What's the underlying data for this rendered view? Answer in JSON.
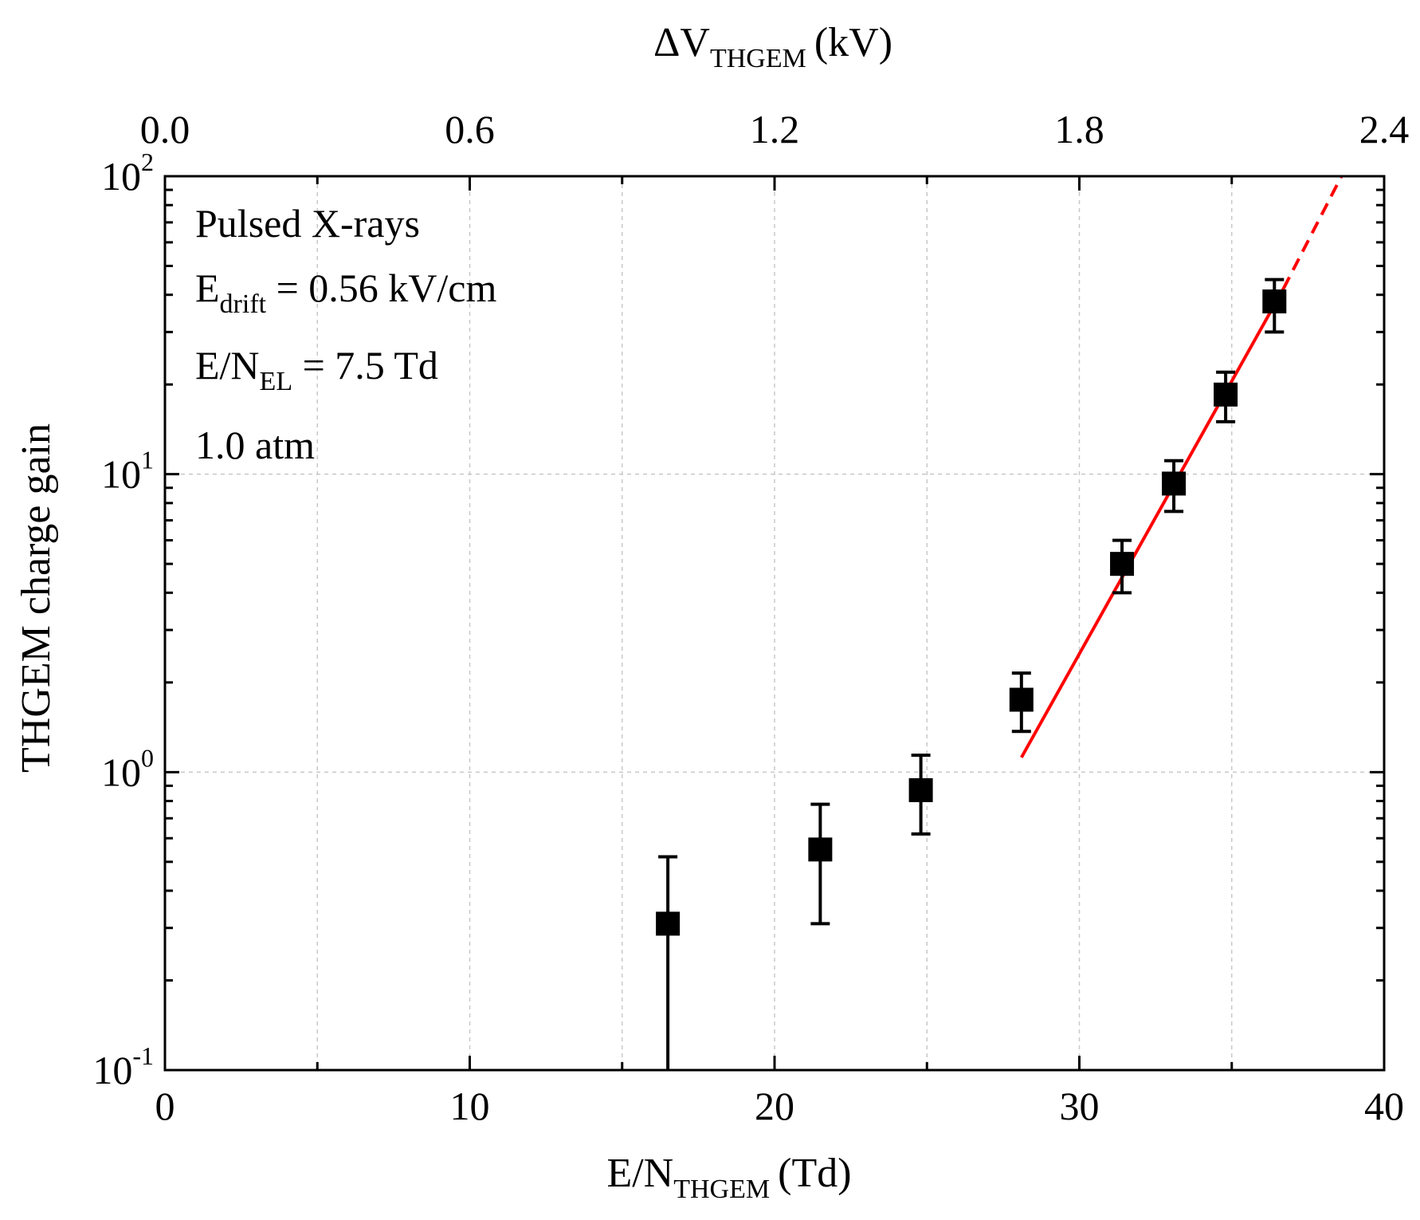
{
  "chart_data": {
    "type": "scatter",
    "xlabel": "E/N",
    "xlabel_sub": "THGEM",
    "xlabel_unit": "(Td)",
    "x2label": "ΔV",
    "x2label_sub": "THGEM",
    "x2label_unit": "(kV)",
    "ylabel": "THGEM charge gain",
    "xlim": [
      0,
      40
    ],
    "x2lim": [
      0.0,
      2.4
    ],
    "ylim": [
      0.1,
      100
    ],
    "yscale": "log",
    "grid": true,
    "x_ticks": [
      "0",
      "10",
      "20",
      "30",
      "40"
    ],
    "x_tick_values": [
      0,
      10,
      20,
      30,
      40
    ],
    "x2_ticks": [
      "0.0",
      "0.6",
      "1.2",
      "1.8",
      "2.4"
    ],
    "x2_tick_values": [
      0.0,
      0.6,
      1.2,
      1.8,
      2.4
    ],
    "y_ticks": [
      {
        "base": "10",
        "exp": "-1",
        "value": 0.1
      },
      {
        "base": "10",
        "exp": "0",
        "value": 1
      },
      {
        "base": "10",
        "exp": "1",
        "value": 10
      },
      {
        "base": "10",
        "exp": "2",
        "value": 100
      }
    ],
    "series": [
      {
        "name": "THGEM charge gain",
        "marker": "square",
        "color": "#000000",
        "x": [
          16.5,
          21.5,
          24.8,
          28.1,
          31.4,
          33.1,
          34.8,
          36.4
        ],
        "y": [
          0.31,
          0.55,
          0.87,
          1.75,
          5.0,
          9.3,
          18.5,
          38.0
        ],
        "err_low": [
          0.31,
          0.24,
          0.25,
          0.38,
          1.0,
          1.8,
          3.5,
          8.0
        ],
        "err_high": [
          0.21,
          0.23,
          0.27,
          0.4,
          1.0,
          1.8,
          3.5,
          7.0
        ]
      }
    ],
    "fit": {
      "name": "exponential fit",
      "color": "#ff0000",
      "x_solid": [
        28.1,
        36.7
      ],
      "y_solid": [
        1.12,
        42.0
      ],
      "x_dashed": [
        36.7,
        38.6
      ],
      "y_dashed": [
        42.0,
        100
      ]
    },
    "annotations": [
      {
        "text": "Pulsed X-rays",
        "sub": "",
        "rest": ""
      },
      {
        "text": "E",
        "sub": "drift",
        "rest": " = 0.56 kV/cm"
      },
      {
        "text": "E/N",
        "sub": "EL",
        "rest": " = 7.5 Td"
      },
      {
        "text": "1.0 atm",
        "sub": "",
        "rest": ""
      }
    ]
  }
}
